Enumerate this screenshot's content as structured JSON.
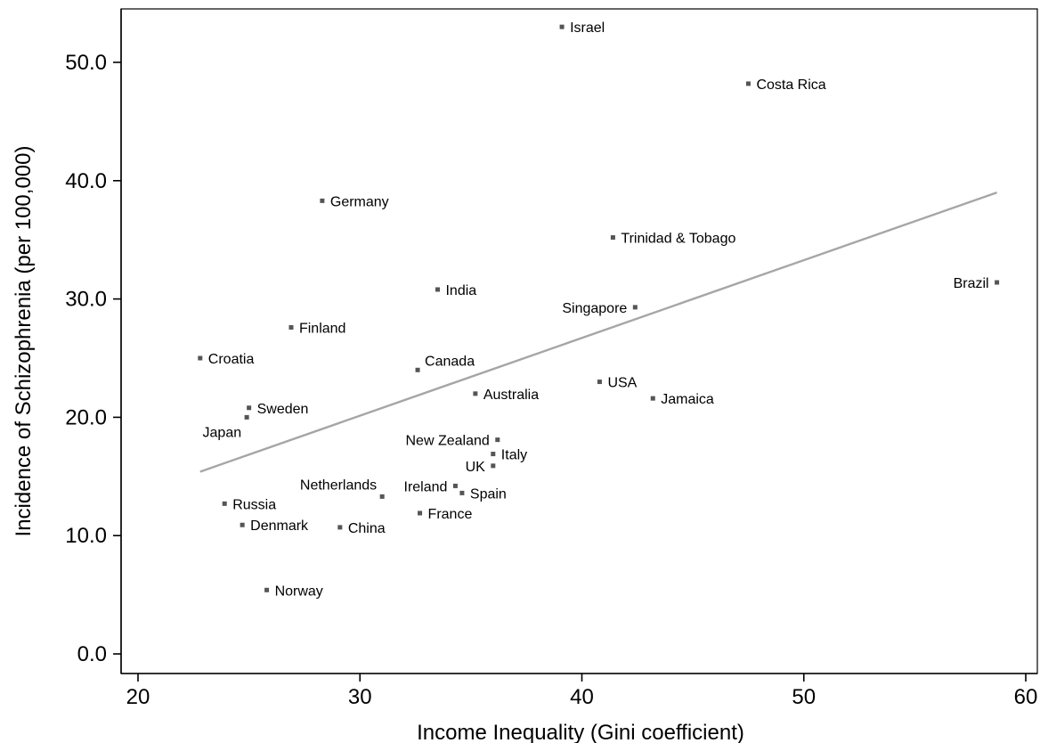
{
  "chart_data": {
    "type": "scatter",
    "title": "",
    "xlabel": "Income Inequality (Gini coefficient)",
    "ylabel": "Incidence of Schizophrenia (per 100,000)",
    "xlim": [
      20,
      60
    ],
    "ylim": [
      0,
      50
    ],
    "x_ticks": [
      "20",
      "30",
      "40",
      "50",
      "60"
    ],
    "y_ticks": [
      "0.0",
      "10.0",
      "20.0",
      "30.0",
      "40.0",
      "50.0"
    ],
    "grid": false,
    "trendline": {
      "x": [
        22.8,
        58.7
      ],
      "y": [
        15.4,
        39.0
      ]
    },
    "points": [
      {
        "label": "Israel",
        "x": 39.1,
        "y": 53.0,
        "label_side": "right"
      },
      {
        "label": "Costa Rica",
        "x": 47.5,
        "y": 48.2,
        "label_side": "right"
      },
      {
        "label": "Germany",
        "x": 28.3,
        "y": 38.3,
        "label_side": "right"
      },
      {
        "label": "Trinidad & Tobago",
        "x": 41.4,
        "y": 35.2,
        "label_side": "right"
      },
      {
        "label": "Brazil",
        "x": 58.7,
        "y": 31.4,
        "label_side": "left"
      },
      {
        "label": "India",
        "x": 33.5,
        "y": 30.8,
        "label_side": "right"
      },
      {
        "label": "Singapore",
        "x": 42.4,
        "y": 29.3,
        "label_side": "left"
      },
      {
        "label": "Finland",
        "x": 26.9,
        "y": 27.6,
        "label_side": "right"
      },
      {
        "label": "Croatia",
        "x": 22.8,
        "y": 25.0,
        "label_side": "right"
      },
      {
        "label": "Canada",
        "x": 32.6,
        "y": 24.0,
        "label_side": "right-up"
      },
      {
        "label": "USA",
        "x": 40.8,
        "y": 23.0,
        "label_side": "right"
      },
      {
        "label": "Australia",
        "x": 35.2,
        "y": 22.0,
        "label_side": "right"
      },
      {
        "label": "Jamaica",
        "x": 43.2,
        "y": 21.6,
        "label_side": "right"
      },
      {
        "label": "Sweden",
        "x": 25.0,
        "y": 20.8,
        "label_side": "right"
      },
      {
        "label": "Japan",
        "x": 24.9,
        "y": 20.0,
        "label_side": "left-down"
      },
      {
        "label": "New Zealand",
        "x": 36.2,
        "y": 18.1,
        "label_side": "left"
      },
      {
        "label": "Italy",
        "x": 36.0,
        "y": 16.9,
        "label_side": "right"
      },
      {
        "label": "UK",
        "x": 36.0,
        "y": 15.9,
        "label_side": "left"
      },
      {
        "label": "Netherlands",
        "x": 31.0,
        "y": 13.3,
        "label_side": "left-up"
      },
      {
        "label": "Ireland",
        "x": 34.3,
        "y": 14.2,
        "label_side": "left"
      },
      {
        "label": "Spain",
        "x": 34.6,
        "y": 13.6,
        "label_side": "right"
      },
      {
        "label": "Russia",
        "x": 23.9,
        "y": 12.7,
        "label_side": "right"
      },
      {
        "label": "France",
        "x": 32.7,
        "y": 11.9,
        "label_side": "right"
      },
      {
        "label": "Denmark",
        "x": 24.7,
        "y": 10.9,
        "label_side": "right"
      },
      {
        "label": "China",
        "x": 29.1,
        "y": 10.7,
        "label_side": "right"
      },
      {
        "label": "Norway",
        "x": 25.8,
        "y": 5.4,
        "label_side": "right"
      }
    ]
  }
}
